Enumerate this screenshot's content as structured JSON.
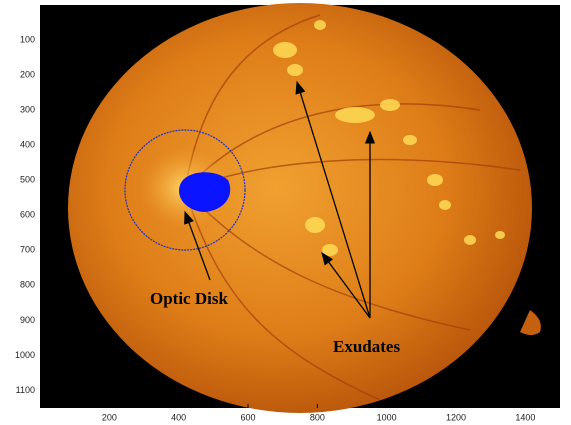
{
  "axes": {
    "xlim": [
      0,
      1500
    ],
    "ylim": [
      0,
      1150
    ],
    "xticks": [
      200,
      400,
      600,
      800,
      1000,
      1200,
      1400
    ],
    "yticks": [
      100,
      200,
      300,
      400,
      500,
      600,
      700,
      800,
      900,
      1000,
      1100
    ]
  },
  "annotations": {
    "optic_disk": "Optic Disk",
    "exudates": "Exudates"
  }
}
